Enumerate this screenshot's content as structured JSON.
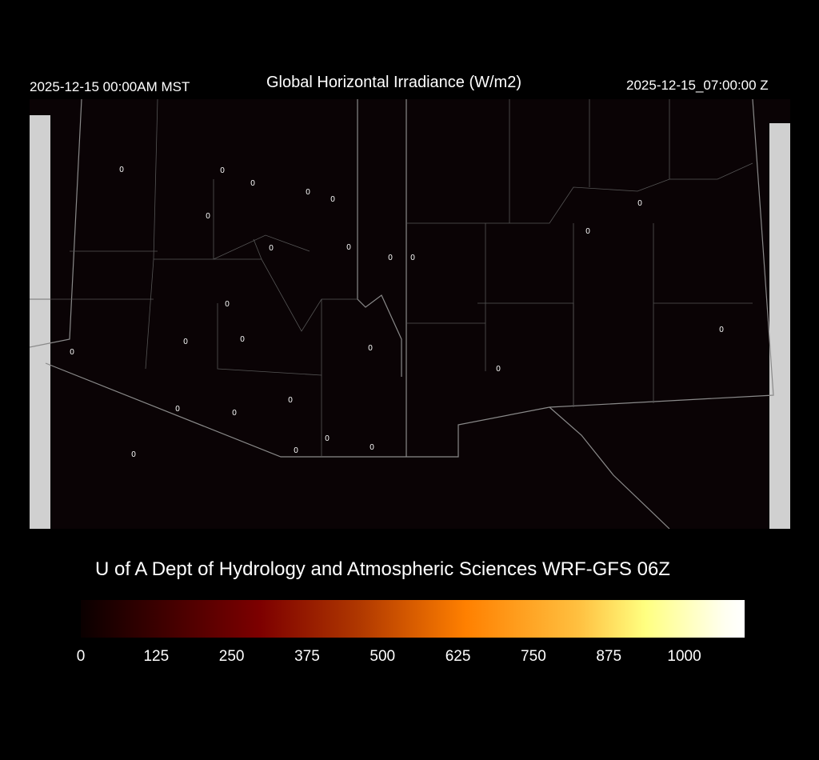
{
  "header": {
    "local_time": "2025-12-15 00:00AM MST",
    "title": "Global Horizontal Irradiance (W/m2)",
    "utc_time": "2025-12-15_07:00:00 Z"
  },
  "footer": {
    "credit": "U of A Dept of Hydrology and Atmospheric Sciences WRF-GFS 06Z"
  },
  "colorbar": {
    "ticks": [
      "0",
      "125",
      "250",
      "375",
      "500",
      "625",
      "750",
      "875",
      "1000"
    ],
    "range": [
      0,
      1100
    ],
    "colors": [
      "#0a0000",
      "#7d0000",
      "#ff8000",
      "#ffff80",
      "#ffffff"
    ]
  },
  "map": {
    "background": "#0a0305",
    "border_color": "#8a8a8a",
    "station_values": [
      "0",
      "0",
      "0",
      "0",
      "0",
      "0",
      "0",
      "0",
      "0",
      "0",
      "0",
      "0",
      "0",
      "0",
      "0",
      "0",
      "0",
      "0",
      "0",
      "0",
      "0",
      "0",
      "0",
      "0",
      "0",
      "0"
    ]
  }
}
